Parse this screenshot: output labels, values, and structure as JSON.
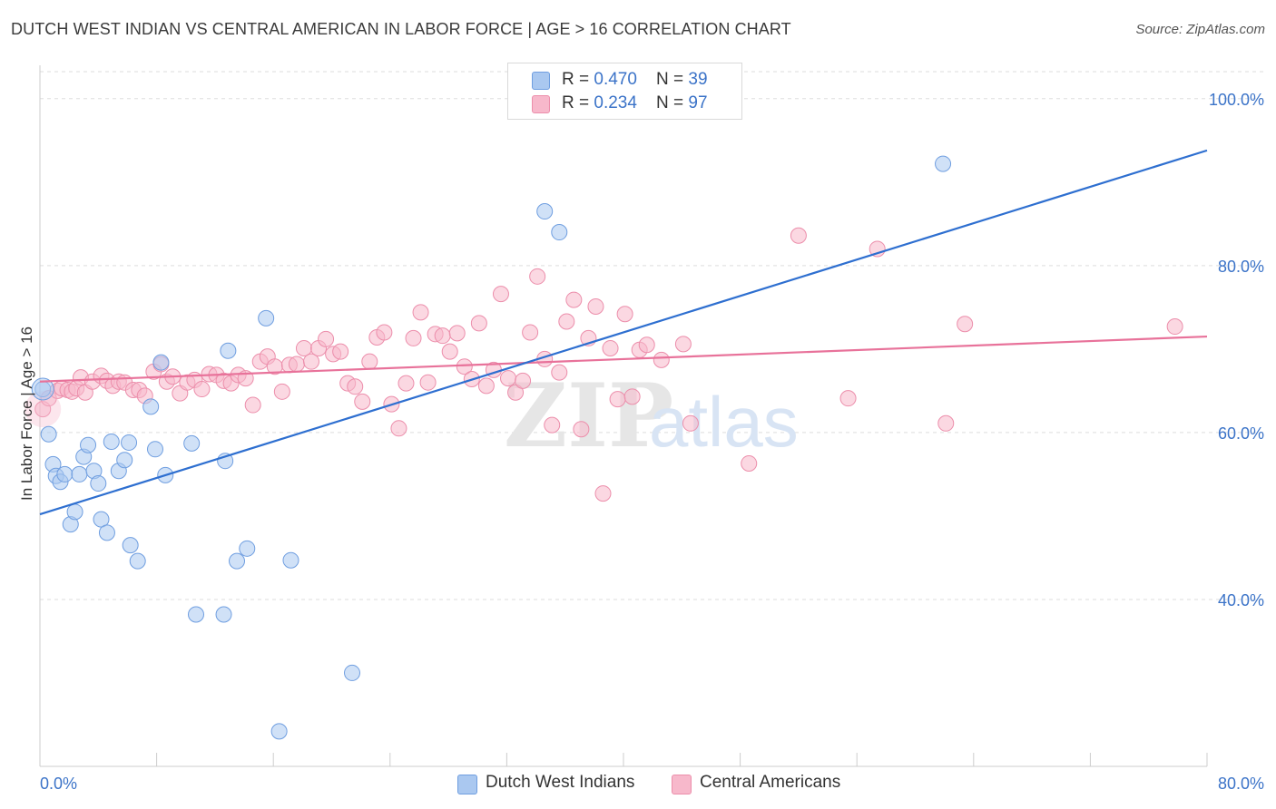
{
  "title": "DUTCH WEST INDIAN VS CENTRAL AMERICAN IN LABOR FORCE | AGE > 16 CORRELATION CHART",
  "source": "Source: ZipAtlas.com",
  "watermark": {
    "zip": "ZIP",
    "atlas": "atlas"
  },
  "colors": {
    "blue_fill": "#aac8f0",
    "blue_stroke": "#6f9ee0",
    "blue_line": "#2e6fd0",
    "pink_fill": "#f7b8cb",
    "pink_stroke": "#ec8eab",
    "pink_line": "#e8729a",
    "grid": "#dedede",
    "tick_text": "#3b73c8"
  },
  "legend": {
    "blue": {
      "r_label": "R = ",
      "r_value": "0.470",
      "n_label": "N = ",
      "n_value": "39"
    },
    "pink": {
      "r_label": "R = ",
      "r_value": "0.234",
      "n_label": "N = ",
      "n_value": "97"
    }
  },
  "bottom_legend": {
    "blue": "Dutch West Indians",
    "pink": "Central Americans"
  },
  "chart_data": {
    "type": "scatter",
    "title": "DUTCH WEST INDIAN VS CENTRAL AMERICAN IN LABOR FORCE | AGE > 16 CORRELATION CHART",
    "xlabel": "",
    "ylabel": "In Labor Force | Age > 16",
    "xlim": [
      0,
      80
    ],
    "ylim": [
      20,
      104
    ],
    "x_tick_labels": {
      "left": "0.0%",
      "right": "80.0%"
    },
    "y_ticks": [
      {
        "value": 100,
        "label": "100.0%"
      },
      {
        "value": 80,
        "label": "80.0%"
      },
      {
        "value": 60,
        "label": "60.0%"
      },
      {
        "value": 40,
        "label": "40.0%"
      }
    ],
    "series": [
      {
        "name": "Dutch West Indians",
        "color": "blue",
        "R": 0.47,
        "N": 39,
        "trend": {
          "x": [
            0,
            80
          ],
          "y": [
            50.2,
            93.8
          ]
        },
        "points": [
          [
            0.2,
            65.2
          ],
          [
            0.6,
            59.8
          ],
          [
            0.9,
            56.2
          ],
          [
            1.1,
            54.8
          ],
          [
            1.4,
            54.1
          ],
          [
            1.7,
            55.0
          ],
          [
            2.1,
            49.0
          ],
          [
            2.4,
            50.5
          ],
          [
            2.7,
            55.0
          ],
          [
            3.0,
            57.1
          ],
          [
            3.3,
            58.5
          ],
          [
            3.7,
            55.4
          ],
          [
            4.0,
            53.9
          ],
          [
            4.2,
            49.6
          ],
          [
            4.6,
            48.0
          ],
          [
            4.9,
            58.9
          ],
          [
            5.4,
            55.4
          ],
          [
            5.8,
            56.7
          ],
          [
            6.1,
            58.8
          ],
          [
            6.2,
            46.5
          ],
          [
            6.7,
            44.6
          ],
          [
            7.6,
            63.1
          ],
          [
            7.9,
            58.0
          ],
          [
            8.3,
            68.4
          ],
          [
            8.6,
            54.9
          ],
          [
            10.4,
            58.7
          ],
          [
            10.7,
            38.2
          ],
          [
            12.6,
            38.2
          ],
          [
            12.7,
            56.6
          ],
          [
            12.9,
            69.8
          ],
          [
            13.5,
            44.6
          ],
          [
            14.2,
            46.1
          ],
          [
            15.5,
            73.7
          ],
          [
            16.4,
            24.2
          ],
          [
            17.2,
            44.7
          ],
          [
            21.4,
            31.2
          ],
          [
            34.6,
            86.5
          ],
          [
            35.6,
            84.0
          ],
          [
            61.9,
            92.2
          ]
        ]
      },
      {
        "name": "Central Americans",
        "color": "pink",
        "R": 0.234,
        "N": 97,
        "trend": {
          "x": [
            0,
            80
          ],
          "y": [
            66.1,
            71.5
          ]
        },
        "points": [
          [
            0.2,
            62.8
          ],
          [
            0.6,
            64.1
          ],
          [
            1.2,
            65.0
          ],
          [
            1.5,
            65.3
          ],
          [
            1.9,
            65.1
          ],
          [
            2.2,
            64.9
          ],
          [
            2.5,
            65.3
          ],
          [
            2.8,
            66.6
          ],
          [
            3.1,
            64.8
          ],
          [
            3.6,
            66.1
          ],
          [
            4.2,
            66.8
          ],
          [
            4.6,
            66.2
          ],
          [
            5.0,
            65.6
          ],
          [
            5.4,
            66.1
          ],
          [
            5.8,
            66.0
          ],
          [
            6.4,
            65.1
          ],
          [
            6.8,
            65.1
          ],
          [
            7.2,
            64.4
          ],
          [
            7.8,
            67.3
          ],
          [
            8.3,
            68.2
          ],
          [
            8.7,
            66.1
          ],
          [
            9.1,
            66.7
          ],
          [
            9.6,
            64.7
          ],
          [
            10.1,
            66.0
          ],
          [
            10.6,
            66.3
          ],
          [
            11.1,
            65.2
          ],
          [
            11.6,
            67.0
          ],
          [
            12.1,
            66.9
          ],
          [
            12.6,
            66.2
          ],
          [
            13.1,
            65.9
          ],
          [
            13.6,
            66.9
          ],
          [
            14.1,
            66.5
          ],
          [
            14.6,
            63.3
          ],
          [
            15.1,
            68.5
          ],
          [
            15.6,
            69.1
          ],
          [
            16.1,
            67.9
          ],
          [
            16.6,
            64.9
          ],
          [
            17.1,
            68.1
          ],
          [
            17.6,
            68.2
          ],
          [
            18.1,
            70.1
          ],
          [
            18.6,
            68.5
          ],
          [
            19.1,
            70.1
          ],
          [
            19.6,
            71.2
          ],
          [
            20.1,
            69.4
          ],
          [
            20.6,
            69.7
          ],
          [
            21.1,
            65.9
          ],
          [
            21.6,
            65.5
          ],
          [
            22.1,
            63.7
          ],
          [
            22.6,
            68.5
          ],
          [
            23.1,
            71.4
          ],
          [
            23.6,
            72.0
          ],
          [
            24.1,
            63.4
          ],
          [
            24.6,
            60.5
          ],
          [
            25.1,
            65.9
          ],
          [
            25.6,
            71.3
          ],
          [
            26.1,
            74.4
          ],
          [
            26.6,
            66.0
          ],
          [
            27.1,
            71.8
          ],
          [
            27.6,
            71.6
          ],
          [
            28.1,
            69.7
          ],
          [
            28.6,
            71.9
          ],
          [
            29.1,
            67.9
          ],
          [
            29.6,
            66.4
          ],
          [
            30.1,
            73.1
          ],
          [
            30.6,
            65.6
          ],
          [
            31.1,
            67.5
          ],
          [
            31.6,
            76.6
          ],
          [
            32.1,
            66.5
          ],
          [
            32.6,
            64.8
          ],
          [
            33.1,
            66.2
          ],
          [
            33.6,
            72.0
          ],
          [
            34.1,
            78.7
          ],
          [
            34.6,
            68.8
          ],
          [
            35.1,
            60.9
          ],
          [
            35.6,
            67.2
          ],
          [
            36.1,
            73.3
          ],
          [
            36.6,
            75.9
          ],
          [
            37.1,
            60.4
          ],
          [
            37.6,
            71.3
          ],
          [
            38.1,
            75.1
          ],
          [
            38.6,
            52.7
          ],
          [
            39.1,
            70.1
          ],
          [
            39.6,
            64.0
          ],
          [
            40.1,
            74.2
          ],
          [
            40.6,
            64.3
          ],
          [
            41.1,
            69.9
          ],
          [
            41.6,
            70.5
          ],
          [
            42.6,
            68.7
          ],
          [
            44.1,
            70.6
          ],
          [
            44.6,
            61.1
          ],
          [
            48.6,
            56.3
          ],
          [
            52.0,
            83.6
          ],
          [
            55.4,
            64.1
          ],
          [
            57.4,
            82.0
          ],
          [
            62.1,
            61.1
          ],
          [
            63.4,
            73.0
          ],
          [
            77.8,
            72.7
          ]
        ]
      }
    ]
  }
}
